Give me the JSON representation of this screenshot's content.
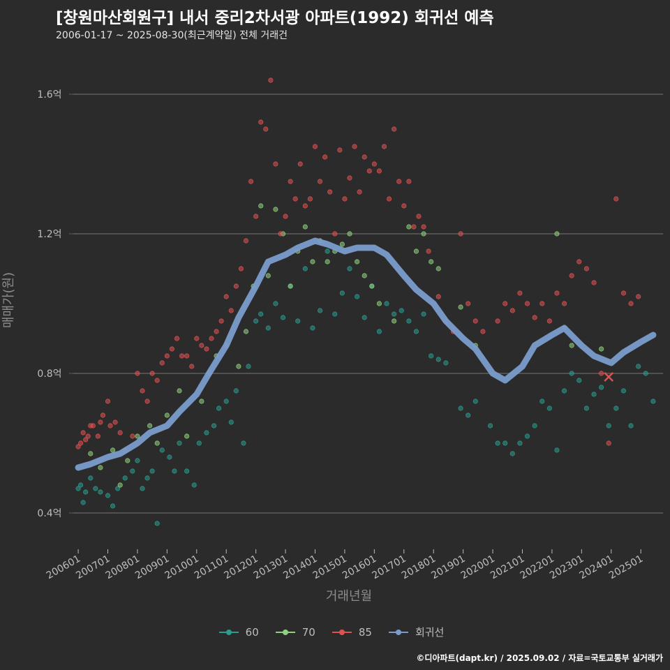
{
  "title": "[창원마산회원구] 내서 중리2차서광 아파트(1992) 회귀선 예측",
  "subtitle": "2006-01-17 ~ 2025-08-30(최근계약일) 전체 거래건",
  "footer": "©디아파트(dapt.kr) / 2025.09.02 / 자료=국토교통부 실거래가",
  "colors": {
    "background": "#2b2b2c",
    "grid": "#5e5e5e",
    "s60": "#2a9d8f",
    "s70": "#8fd17e",
    "s85": "#e05252",
    "regression": "#7a9ccc"
  },
  "legend": [
    {
      "label": "60",
      "color": "#2a9d8f"
    },
    {
      "label": "70",
      "color": "#8fd17e"
    },
    {
      "label": "85",
      "color": "#e05252"
    },
    {
      "label": "회귀선",
      "color": "#7a9ccc"
    }
  ],
  "chart_data": {
    "type": "scatter",
    "xlabel": "거래년월",
    "ylabel": "매매가(원)",
    "xlim": [
      "2005-11",
      "2025-10"
    ],
    "ylim": [
      0.3,
      1.7
    ],
    "yticks": [
      0.4,
      0.8,
      1.2,
      1.6
    ],
    "ytick_labels": [
      "0.4억",
      "0.8억",
      "1.2억",
      "1.6억"
    ],
    "xticks": [
      "200601",
      "200701",
      "200801",
      "200901",
      "201001",
      "201101",
      "201201",
      "201301",
      "201401",
      "201501",
      "201601",
      "201701",
      "201801",
      "201901",
      "202001",
      "202101",
      "202201",
      "202301",
      "202401",
      "202501"
    ],
    "grid": true,
    "legend_position": "bottom",
    "series": [
      {
        "name": "60",
        "points": [
          [
            "2006-01",
            0.47
          ],
          [
            "2006-02",
            0.48
          ],
          [
            "2006-03",
            0.43
          ],
          [
            "2006-04",
            0.46
          ],
          [
            "2006-06",
            0.5
          ],
          [
            "2006-08",
            0.47
          ],
          [
            "2006-10",
            0.46
          ],
          [
            "2007-01",
            0.45
          ],
          [
            "2007-03",
            0.42
          ],
          [
            "2007-05",
            0.47
          ],
          [
            "2007-08",
            0.5
          ],
          [
            "2007-11",
            0.52
          ],
          [
            "2008-01",
            0.55
          ],
          [
            "2008-03",
            0.47
          ],
          [
            "2008-05",
            0.5
          ],
          [
            "2008-07",
            0.52
          ],
          [
            "2008-09",
            0.37
          ],
          [
            "2008-11",
            0.58
          ],
          [
            "2009-02",
            0.56
          ],
          [
            "2009-04",
            0.52
          ],
          [
            "2009-06",
            0.6
          ],
          [
            "2009-09",
            0.52
          ],
          [
            "2009-12",
            0.48
          ],
          [
            "2010-02",
            0.6
          ],
          [
            "2010-05",
            0.63
          ],
          [
            "2010-08",
            0.65
          ],
          [
            "2010-10",
            0.7
          ],
          [
            "2011-01",
            0.72
          ],
          [
            "2011-03",
            0.66
          ],
          [
            "2011-05",
            0.75
          ],
          [
            "2011-08",
            0.6
          ],
          [
            "2011-10",
            0.82
          ],
          [
            "2012-01",
            0.95
          ],
          [
            "2012-03",
            0.97
          ],
          [
            "2012-06",
            0.93
          ],
          [
            "2012-09",
            1.0
          ],
          [
            "2012-12",
            0.96
          ],
          [
            "2013-03",
            1.05
          ],
          [
            "2013-06",
            0.95
          ],
          [
            "2013-09",
            1.1
          ],
          [
            "2013-12",
            0.93
          ],
          [
            "2014-03",
            0.98
          ],
          [
            "2014-06",
            1.15
          ],
          [
            "2014-09",
            0.97
          ],
          [
            "2014-12",
            1.03
          ],
          [
            "2015-03",
            1.1
          ],
          [
            "2015-06",
            1.02
          ],
          [
            "2015-09",
            0.96
          ],
          [
            "2015-12",
            1.05
          ],
          [
            "2016-03",
            0.92
          ],
          [
            "2016-06",
            1.0
          ],
          [
            "2016-09",
            0.97
          ],
          [
            "2016-12",
            0.98
          ],
          [
            "2017-03",
            0.95
          ],
          [
            "2017-06",
            0.92
          ],
          [
            "2017-09",
            0.97
          ],
          [
            "2017-12",
            0.85
          ],
          [
            "2018-03",
            0.84
          ],
          [
            "2018-06",
            0.83
          ],
          [
            "2018-12",
            0.7
          ],
          [
            "2019-03",
            0.68
          ],
          [
            "2019-06",
            0.72
          ],
          [
            "2019-12",
            0.65
          ],
          [
            "2020-03",
            0.6
          ],
          [
            "2020-06",
            0.6
          ],
          [
            "2020-09",
            0.57
          ],
          [
            "2020-12",
            0.6
          ],
          [
            "2021-03",
            0.62
          ],
          [
            "2021-06",
            0.65
          ],
          [
            "2021-09",
            0.72
          ],
          [
            "2021-12",
            0.7
          ],
          [
            "2022-03",
            0.58
          ],
          [
            "2022-06",
            0.75
          ],
          [
            "2022-09",
            0.8
          ],
          [
            "2022-12",
            0.78
          ],
          [
            "2023-03",
            0.7
          ],
          [
            "2023-06",
            0.74
          ],
          [
            "2023-09",
            0.76
          ],
          [
            "2023-12",
            0.65
          ],
          [
            "2024-03",
            0.7
          ],
          [
            "2024-06",
            0.75
          ],
          [
            "2024-09",
            0.65
          ],
          [
            "2024-12",
            0.82
          ],
          [
            "2025-03",
            0.8
          ],
          [
            "2025-06",
            0.72
          ]
        ]
      },
      {
        "name": "70",
        "points": [
          [
            "2006-06",
            0.57
          ],
          [
            "2006-10",
            0.53
          ],
          [
            "2007-03",
            0.58
          ],
          [
            "2007-06",
            0.48
          ],
          [
            "2007-09",
            0.55
          ],
          [
            "2008-01",
            0.62
          ],
          [
            "2008-06",
            0.65
          ],
          [
            "2008-09",
            0.6
          ],
          [
            "2009-01",
            0.68
          ],
          [
            "2009-06",
            0.75
          ],
          [
            "2009-09",
            0.62
          ],
          [
            "2010-03",
            0.72
          ],
          [
            "2010-06",
            0.8
          ],
          [
            "2010-09",
            0.85
          ],
          [
            "2011-01",
            0.88
          ],
          [
            "2011-06",
            0.82
          ],
          [
            "2011-09",
            0.92
          ],
          [
            "2011-12",
            1.05
          ],
          [
            "2012-03",
            1.28
          ],
          [
            "2012-06",
            1.08
          ],
          [
            "2012-09",
            1.27
          ],
          [
            "2012-12",
            1.2
          ],
          [
            "2013-03",
            1.05
          ],
          [
            "2013-06",
            1.15
          ],
          [
            "2013-09",
            1.22
          ],
          [
            "2013-12",
            1.12
          ],
          [
            "2014-03",
            1.18
          ],
          [
            "2014-06",
            1.12
          ],
          [
            "2014-09",
            1.15
          ],
          [
            "2014-12",
            1.17
          ],
          [
            "2015-03",
            1.2
          ],
          [
            "2015-06",
            1.12
          ],
          [
            "2015-09",
            1.08
          ],
          [
            "2015-12",
            1.05
          ],
          [
            "2016-03",
            1.0
          ],
          [
            "2016-09",
            0.95
          ],
          [
            "2017-03",
            1.22
          ],
          [
            "2017-06",
            1.15
          ],
          [
            "2017-09",
            1.2
          ],
          [
            "2017-12",
            1.12
          ],
          [
            "2018-03",
            1.1
          ],
          [
            "2018-12",
            0.99
          ],
          [
            "2019-06",
            0.88
          ],
          [
            "2022-03",
            1.2
          ],
          [
            "2022-06",
            0.93
          ],
          [
            "2022-09",
            0.88
          ],
          [
            "2023-09",
            0.87
          ]
        ]
      },
      {
        "name": "85",
        "points": [
          [
            "2006-01",
            0.59
          ],
          [
            "2006-02",
            0.6
          ],
          [
            "2006-03",
            0.63
          ],
          [
            "2006-04",
            0.61
          ],
          [
            "2006-05",
            0.62
          ],
          [
            "2006-06",
            0.65
          ],
          [
            "2006-07",
            0.65
          ],
          [
            "2006-09",
            0.62
          ],
          [
            "2006-10",
            0.66
          ],
          [
            "2006-11",
            0.68
          ],
          [
            "2007-01",
            0.72
          ],
          [
            "2007-02",
            0.65
          ],
          [
            "2007-04",
            0.66
          ],
          [
            "2007-06",
            0.63
          ],
          [
            "2007-08",
            0.58
          ],
          [
            "2007-11",
            0.62
          ],
          [
            "2008-01",
            0.8
          ],
          [
            "2008-03",
            0.75
          ],
          [
            "2008-05",
            0.72
          ],
          [
            "2008-07",
            0.8
          ],
          [
            "2008-09",
            0.78
          ],
          [
            "2008-11",
            0.83
          ],
          [
            "2009-01",
            0.85
          ],
          [
            "2009-03",
            0.87
          ],
          [
            "2009-05",
            0.9
          ],
          [
            "2009-07",
            0.85
          ],
          [
            "2009-09",
            0.85
          ],
          [
            "2009-11",
            0.82
          ],
          [
            "2010-01",
            0.9
          ],
          [
            "2010-03",
            0.88
          ],
          [
            "2010-05",
            0.87
          ],
          [
            "2010-07",
            0.9
          ],
          [
            "2010-09",
            0.92
          ],
          [
            "2010-11",
            0.95
          ],
          [
            "2011-01",
            1.02
          ],
          [
            "2011-03",
            0.98
          ],
          [
            "2011-05",
            1.05
          ],
          [
            "2011-07",
            1.1
          ],
          [
            "2011-09",
            1.18
          ],
          [
            "2011-11",
            1.35
          ],
          [
            "2012-01",
            1.25
          ],
          [
            "2012-03",
            1.52
          ],
          [
            "2012-05",
            1.5
          ],
          [
            "2012-07",
            1.64
          ],
          [
            "2012-09",
            1.4
          ],
          [
            "2012-11",
            1.2
          ],
          [
            "2013-01",
            1.25
          ],
          [
            "2013-03",
            1.35
          ],
          [
            "2013-05",
            1.3
          ],
          [
            "2013-07",
            1.4
          ],
          [
            "2013-09",
            1.28
          ],
          [
            "2013-11",
            1.3
          ],
          [
            "2014-01",
            1.45
          ],
          [
            "2014-03",
            1.35
          ],
          [
            "2014-05",
            1.42
          ],
          [
            "2014-07",
            1.32
          ],
          [
            "2014-09",
            1.2
          ],
          [
            "2014-11",
            1.44
          ],
          [
            "2015-01",
            1.3
          ],
          [
            "2015-03",
            1.36
          ],
          [
            "2015-05",
            1.45
          ],
          [
            "2015-07",
            1.32
          ],
          [
            "2015-09",
            1.42
          ],
          [
            "2015-11",
            1.38
          ],
          [
            "2016-01",
            1.4
          ],
          [
            "2016-03",
            1.38
          ],
          [
            "2016-05",
            1.45
          ],
          [
            "2016-07",
            1.3
          ],
          [
            "2016-09",
            1.5
          ],
          [
            "2016-11",
            1.35
          ],
          [
            "2017-01",
            1.28
          ],
          [
            "2017-03",
            1.35
          ],
          [
            "2017-05",
            1.22
          ],
          [
            "2017-07",
            1.25
          ],
          [
            "2017-09",
            1.22
          ],
          [
            "2017-11",
            1.15
          ],
          [
            "2018-01",
            1.0
          ],
          [
            "2018-03",
            1.02
          ],
          [
            "2018-06",
            0.95
          ],
          [
            "2018-09",
            0.92
          ],
          [
            "2018-12",
            1.2
          ],
          [
            "2019-03",
            1.0
          ],
          [
            "2019-06",
            0.95
          ],
          [
            "2019-09",
            0.92
          ],
          [
            "2020-03",
            0.95
          ],
          [
            "2020-06",
            1.0
          ],
          [
            "2020-09",
            0.98
          ],
          [
            "2020-12",
            1.03
          ],
          [
            "2021-03",
            1.0
          ],
          [
            "2021-06",
            0.96
          ],
          [
            "2021-09",
            1.0
          ],
          [
            "2021-12",
            0.95
          ],
          [
            "2022-03",
            1.03
          ],
          [
            "2022-06",
            1.0
          ],
          [
            "2022-09",
            1.08
          ],
          [
            "2022-12",
            1.12
          ],
          [
            "2023-03",
            1.1
          ],
          [
            "2023-06",
            1.06
          ],
          [
            "2023-09",
            0.8
          ],
          [
            "2023-12",
            0.6
          ],
          [
            "2024-03",
            1.3
          ],
          [
            "2024-06",
            1.03
          ],
          [
            "2024-09",
            1.0
          ],
          [
            "2024-12",
            1.02
          ]
        ]
      },
      {
        "name": "회귀선",
        "points": [
          [
            "2006-01",
            0.53
          ],
          [
            "2006-06",
            0.54
          ],
          [
            "2007-01",
            0.56
          ],
          [
            "2007-06",
            0.57
          ],
          [
            "2008-01",
            0.6
          ],
          [
            "2008-06",
            0.63
          ],
          [
            "2009-01",
            0.65
          ],
          [
            "2009-06",
            0.69
          ],
          [
            "2010-01",
            0.74
          ],
          [
            "2010-06",
            0.8
          ],
          [
            "2011-01",
            0.88
          ],
          [
            "2011-06",
            0.96
          ],
          [
            "2012-01",
            1.05
          ],
          [
            "2012-06",
            1.12
          ],
          [
            "2013-01",
            1.14
          ],
          [
            "2013-06",
            1.16
          ],
          [
            "2014-01",
            1.18
          ],
          [
            "2014-06",
            1.17
          ],
          [
            "2015-01",
            1.15
          ],
          [
            "2015-06",
            1.16
          ],
          [
            "2016-01",
            1.16
          ],
          [
            "2016-06",
            1.14
          ],
          [
            "2017-01",
            1.08
          ],
          [
            "2017-06",
            1.04
          ],
          [
            "2018-01",
            1.0
          ],
          [
            "2018-06",
            0.95
          ],
          [
            "2019-01",
            0.9
          ],
          [
            "2019-06",
            0.87
          ],
          [
            "2020-01",
            0.8
          ],
          [
            "2020-06",
            0.78
          ],
          [
            "2021-01",
            0.82
          ],
          [
            "2021-06",
            0.88
          ],
          [
            "2022-01",
            0.91
          ],
          [
            "2022-06",
            0.93
          ],
          [
            "2023-01",
            0.88
          ],
          [
            "2023-06",
            0.85
          ],
          [
            "2024-01",
            0.83
          ],
          [
            "2024-06",
            0.86
          ],
          [
            "2025-01",
            0.89
          ],
          [
            "2025-06",
            0.91
          ]
        ]
      }
    ],
    "marker": {
      "x": "2023-12",
      "y": 0.79,
      "symbol": "x"
    }
  }
}
